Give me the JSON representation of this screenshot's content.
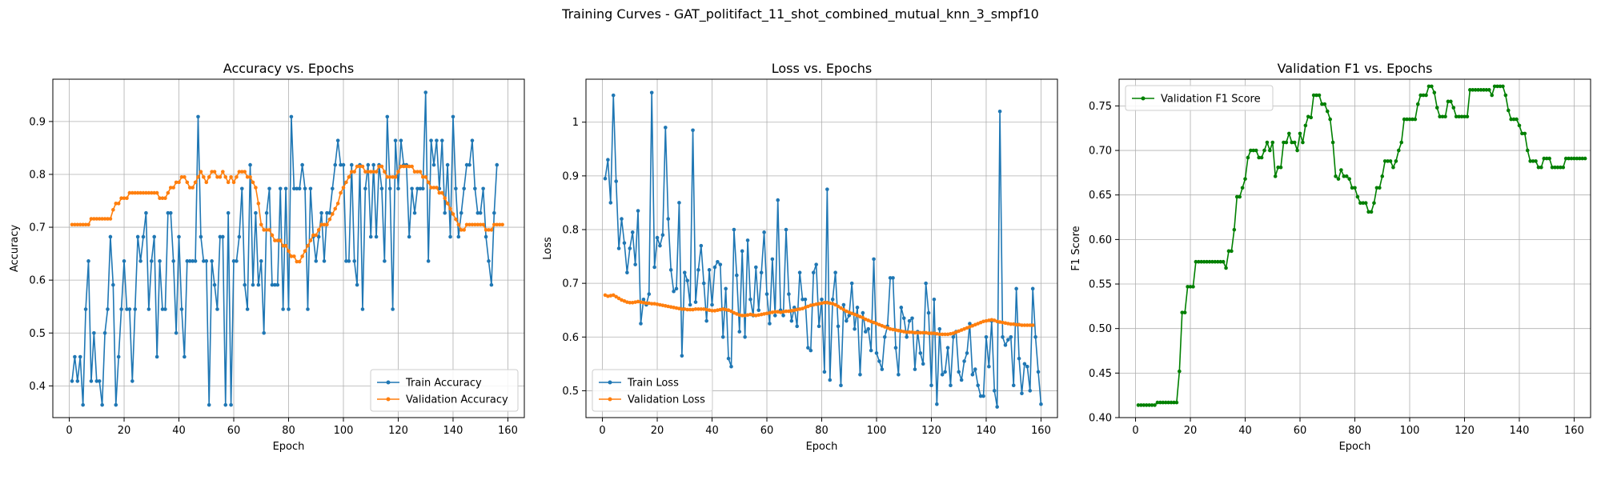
{
  "suptitle": "Training Curves - GAT_politifact_11_shot_combined_mutual_knn_3_smpf10",
  "colors": {
    "train": "#1f77b4",
    "validation": "#ff7f0e",
    "f1": "#008000",
    "grid": "#b0b0b0"
  },
  "chart_data": [
    {
      "type": "line",
      "title": "Accuracy vs. Epochs",
      "xlabel": "Epoch",
      "ylabel": "Accuracy",
      "xlim": [
        -6,
        166
      ],
      "ylim": [
        0.34,
        0.98
      ],
      "xticks": [
        0,
        20,
        40,
        60,
        80,
        100,
        120,
        140,
        160
      ],
      "yticks": [
        0.4,
        0.5,
        0.6,
        0.7,
        0.8,
        0.9
      ],
      "grid": true,
      "legend": "lower-right",
      "series": [
        {
          "name": "Train Accuracy",
          "color": "#1f77b4",
          "values": [
            0.409,
            0.455,
            0.409,
            0.455,
            0.364,
            0.545,
            0.636,
            0.409,
            0.5,
            0.409,
            0.409,
            0.364,
            0.5,
            0.545,
            0.682,
            0.591,
            0.364,
            0.455,
            0.545,
            0.636,
            0.545,
            0.545,
            0.409,
            0.545,
            0.682,
            0.636,
            0.682,
            0.727,
            0.545,
            0.636,
            0.682,
            0.455,
            0.636,
            0.545,
            0.545,
            0.727,
            0.727,
            0.636,
            0.5,
            0.682,
            0.545,
            0.455,
            0.636,
            0.636,
            0.636,
            0.636,
            0.909,
            0.682,
            0.636,
            0.636,
            0.364,
            0.636,
            0.591,
            0.545,
            0.682,
            0.682,
            0.364,
            0.727,
            0.364,
            0.636,
            0.636,
            0.682,
            0.773,
            0.591,
            0.545,
            0.818,
            0.591,
            0.727,
            0.591,
            0.636,
            0.5,
            0.727,
            0.773,
            0.591,
            0.591,
            0.591,
            0.773,
            0.545,
            0.773,
            0.545,
            0.909,
            0.773,
            0.773,
            0.773,
            0.818,
            0.773,
            0.545,
            0.773,
            0.682,
            0.636,
            0.682,
            0.727,
            0.636,
            0.727,
            0.727,
            0.773,
            0.818,
            0.864,
            0.818,
            0.818,
            0.636,
            0.636,
            0.818,
            0.636,
            0.591,
            0.818,
            0.545,
            0.773,
            0.818,
            0.682,
            0.818,
            0.682,
            0.818,
            0.773,
            0.636,
            0.909,
            0.773,
            0.545,
            0.864,
            0.773,
            0.864,
            0.818,
            0.818,
            0.682,
            0.773,
            0.727,
            0.773,
            0.773,
            0.773,
            0.955,
            0.636,
            0.864,
            0.818,
            0.864,
            0.773,
            0.864,
            0.727,
            0.818,
            0.682,
            0.909,
            0.773,
            0.682,
            0.727,
            0.773,
            0.818,
            0.818,
            0.864,
            0.773,
            0.727,
            0.727,
            0.773,
            0.682,
            0.636,
            0.591,
            0.727,
            0.818
          ]
        },
        {
          "name": "Validation Accuracy",
          "color": "#ff7f0e",
          "values": [
            0.705,
            0.705,
            0.705,
            0.705,
            0.705,
            0.705,
            0.705,
            0.716,
            0.716,
            0.716,
            0.716,
            0.716,
            0.716,
            0.716,
            0.716,
            0.733,
            0.745,
            0.745,
            0.755,
            0.755,
            0.755,
            0.765,
            0.765,
            0.765,
            0.765,
            0.765,
            0.765,
            0.765,
            0.765,
            0.765,
            0.765,
            0.765,
            0.755,
            0.755,
            0.755,
            0.765,
            0.775,
            0.775,
            0.785,
            0.785,
            0.795,
            0.795,
            0.785,
            0.775,
            0.775,
            0.785,
            0.795,
            0.805,
            0.795,
            0.785,
            0.795,
            0.805,
            0.805,
            0.795,
            0.795,
            0.805,
            0.795,
            0.785,
            0.795,
            0.785,
            0.795,
            0.805,
            0.805,
            0.805,
            0.795,
            0.795,
            0.785,
            0.775,
            0.745,
            0.705,
            0.695,
            0.695,
            0.695,
            0.685,
            0.675,
            0.675,
            0.675,
            0.665,
            0.665,
            0.655,
            0.645,
            0.645,
            0.635,
            0.635,
            0.645,
            0.655,
            0.665,
            0.675,
            0.685,
            0.685,
            0.695,
            0.705,
            0.705,
            0.705,
            0.715,
            0.725,
            0.735,
            0.745,
            0.765,
            0.775,
            0.785,
            0.795,
            0.805,
            0.805,
            0.815,
            0.815,
            0.815,
            0.805,
            0.805,
            0.805,
            0.805,
            0.805,
            0.815,
            0.815,
            0.805,
            0.795,
            0.795,
            0.795,
            0.795,
            0.805,
            0.815,
            0.815,
            0.815,
            0.815,
            0.815,
            0.805,
            0.805,
            0.805,
            0.795,
            0.795,
            0.785,
            0.775,
            0.775,
            0.775,
            0.765,
            0.765,
            0.755,
            0.745,
            0.735,
            0.725,
            0.715,
            0.705,
            0.695,
            0.695,
            0.705,
            0.705,
            0.705,
            0.705,
            0.705,
            0.705,
            0.705,
            0.695,
            0.695,
            0.695,
            0.705,
            0.705,
            0.705,
            0.705
          ]
        }
      ]
    },
    {
      "type": "line",
      "title": "Loss vs. Epochs",
      "xlabel": "Epoch",
      "ylabel": "Loss",
      "xlim": [
        -6,
        166
      ],
      "ylim": [
        0.45,
        1.08
      ],
      "xticks": [
        0,
        20,
        40,
        60,
        80,
        100,
        120,
        140,
        160
      ],
      "yticks": [
        0.5,
        0.6,
        0.7,
        0.8,
        0.9,
        1.0
      ],
      "grid": true,
      "legend": "lower-left",
      "series": [
        {
          "name": "Train Loss",
          "color": "#1f77b4",
          "values": [
            0.895,
            0.93,
            0.85,
            1.05,
            0.89,
            0.765,
            0.82,
            0.775,
            0.72,
            0.765,
            0.795,
            0.735,
            0.835,
            0.625,
            0.67,
            0.66,
            0.68,
            1.055,
            0.73,
            0.785,
            0.77,
            0.79,
            0.99,
            0.82,
            0.725,
            0.685,
            0.69,
            0.85,
            0.565,
            0.72,
            0.705,
            0.66,
            0.985,
            0.665,
            0.725,
            0.77,
            0.7,
            0.63,
            0.725,
            0.66,
            0.73,
            0.74,
            0.735,
            0.6,
            0.69,
            0.56,
            0.545,
            0.8,
            0.715,
            0.61,
            0.76,
            0.6,
            0.78,
            0.67,
            0.64,
            0.73,
            0.65,
            0.72,
            0.795,
            0.68,
            0.625,
            0.745,
            0.64,
            0.855,
            0.65,
            0.64,
            0.8,
            0.68,
            0.63,
            0.655,
            0.62,
            0.72,
            0.67,
            0.67,
            0.58,
            0.575,
            0.72,
            0.735,
            0.62,
            0.67,
            0.535,
            0.875,
            0.52,
            0.67,
            0.72,
            0.62,
            0.51,
            0.66,
            0.63,
            0.64,
            0.7,
            0.615,
            0.655,
            0.53,
            0.645,
            0.61,
            0.615,
            0.575,
            0.745,
            0.57,
            0.555,
            0.54,
            0.6,
            0.62,
            0.71,
            0.71,
            0.58,
            0.53,
            0.655,
            0.635,
            0.6,
            0.63,
            0.635,
            0.54,
            0.61,
            0.57,
            0.55,
            0.7,
            0.645,
            0.51,
            0.67,
            0.475,
            0.615,
            0.53,
            0.535,
            0.58,
            0.51,
            0.6,
            0.61,
            0.535,
            0.52,
            0.555,
            0.57,
            0.625,
            0.53,
            0.54,
            0.51,
            0.49,
            0.49,
            0.6,
            0.545,
            0.63,
            0.5,
            0.47,
            1.02,
            0.6,
            0.585,
            0.595,
            0.6,
            0.51,
            0.69,
            0.56,
            0.495,
            0.55,
            0.545,
            0.5,
            0.69,
            0.6,
            0.535,
            0.475
          ]
        },
        {
          "name": "Validation Loss",
          "color": "#ff7f0e",
          "values": [
            0.678,
            0.676,
            0.677,
            0.678,
            0.675,
            0.672,
            0.669,
            0.667,
            0.665,
            0.664,
            0.664,
            0.665,
            0.666,
            0.665,
            0.664,
            0.663,
            0.663,
            0.662,
            0.662,
            0.661,
            0.66,
            0.659,
            0.658,
            0.657,
            0.656,
            0.655,
            0.654,
            0.653,
            0.652,
            0.652,
            0.651,
            0.651,
            0.651,
            0.652,
            0.652,
            0.652,
            0.652,
            0.651,
            0.65,
            0.649,
            0.649,
            0.65,
            0.651,
            0.652,
            0.651,
            0.65,
            0.648,
            0.645,
            0.643,
            0.641,
            0.64,
            0.64,
            0.641,
            0.642,
            0.641,
            0.64,
            0.641,
            0.642,
            0.643,
            0.644,
            0.645,
            0.646,
            0.647,
            0.647,
            0.646,
            0.647,
            0.648,
            0.648,
            0.649,
            0.65,
            0.651,
            0.652,
            0.653,
            0.655,
            0.657,
            0.659,
            0.66,
            0.661,
            0.662,
            0.663,
            0.664,
            0.664,
            0.663,
            0.662,
            0.66,
            0.657,
            0.654,
            0.651,
            0.648,
            0.646,
            0.644,
            0.642,
            0.64,
            0.638,
            0.636,
            0.633,
            0.631,
            0.629,
            0.627,
            0.625,
            0.623,
            0.621,
            0.619,
            0.617,
            0.615,
            0.614,
            0.613,
            0.612,
            0.611,
            0.61,
            0.609,
            0.609,
            0.609,
            0.608,
            0.608,
            0.608,
            0.608,
            0.608,
            0.607,
            0.607,
            0.607,
            0.606,
            0.605,
            0.605,
            0.605,
            0.605,
            0.606,
            0.607,
            0.609,
            0.611,
            0.613,
            0.615,
            0.617,
            0.619,
            0.621,
            0.623,
            0.625,
            0.627,
            0.629,
            0.63,
            0.631,
            0.632,
            0.631,
            0.629,
            0.628,
            0.627,
            0.626,
            0.625,
            0.624,
            0.624,
            0.623,
            0.623,
            0.622,
            0.622,
            0.622,
            0.622,
            0.622
          ]
        }
      ]
    },
    {
      "type": "line",
      "title": "Validation F1 vs. Epochs",
      "xlabel": "Epoch",
      "ylabel": "F1 Score",
      "xlim": [
        -6,
        166
      ],
      "ylim": [
        0.4,
        0.78
      ],
      "xticks": [
        0,
        20,
        40,
        60,
        80,
        100,
        120,
        140,
        160
      ],
      "yticks": [
        0.4,
        0.45,
        0.5,
        0.55,
        0.6,
        0.65,
        0.7,
        0.75
      ],
      "ytick_labels": [
        "0.40",
        "0.45",
        "0.50",
        "0.55",
        "0.60",
        "0.65",
        "0.70",
        "0.75"
      ],
      "grid": true,
      "legend": "top-left",
      "series": [
        {
          "name": "Validation F1 Score",
          "color": "#008000",
          "values": [
            0.414,
            0.414,
            0.414,
            0.414,
            0.414,
            0.414,
            0.414,
            0.417,
            0.417,
            0.417,
            0.417,
            0.417,
            0.417,
            0.417,
            0.417,
            0.452,
            0.518,
            0.518,
            0.547,
            0.547,
            0.547,
            0.575,
            0.575,
            0.575,
            0.575,
            0.575,
            0.575,
            0.575,
            0.575,
            0.575,
            0.575,
            0.575,
            0.568,
            0.587,
            0.587,
            0.611,
            0.648,
            0.648,
            0.658,
            0.668,
            0.692,
            0.7,
            0.7,
            0.7,
            0.692,
            0.692,
            0.7,
            0.709,
            0.7,
            0.709,
            0.671,
            0.681,
            0.681,
            0.709,
            0.709,
            0.719,
            0.709,
            0.709,
            0.7,
            0.719,
            0.709,
            0.728,
            0.738,
            0.737,
            0.762,
            0.762,
            0.762,
            0.752,
            0.752,
            0.744,
            0.735,
            0.709,
            0.671,
            0.668,
            0.678,
            0.671,
            0.671,
            0.668,
            0.658,
            0.658,
            0.648,
            0.641,
            0.641,
            0.641,
            0.631,
            0.631,
            0.641,
            0.658,
            0.658,
            0.671,
            0.688,
            0.688,
            0.688,
            0.681,
            0.688,
            0.7,
            0.709,
            0.735,
            0.735,
            0.735,
            0.735,
            0.735,
            0.752,
            0.762,
            0.762,
            0.762,
            0.772,
            0.772,
            0.765,
            0.748,
            0.738,
            0.738,
            0.738,
            0.755,
            0.755,
            0.748,
            0.738,
            0.738,
            0.738,
            0.738,
            0.738,
            0.768,
            0.768,
            0.768,
            0.768,
            0.768,
            0.768,
            0.768,
            0.768,
            0.762,
            0.772,
            0.772,
            0.772,
            0.772,
            0.762,
            0.745,
            0.735,
            0.735,
            0.735,
            0.728,
            0.719,
            0.719,
            0.7,
            0.688,
            0.688,
            0.688,
            0.681,
            0.681,
            0.691,
            0.691,
            0.691,
            0.681,
            0.681,
            0.681,
            0.681,
            0.681,
            0.691,
            0.691,
            0.691,
            0.691,
            0.691,
            0.691,
            0.691,
            0.691
          ]
        }
      ]
    }
  ]
}
